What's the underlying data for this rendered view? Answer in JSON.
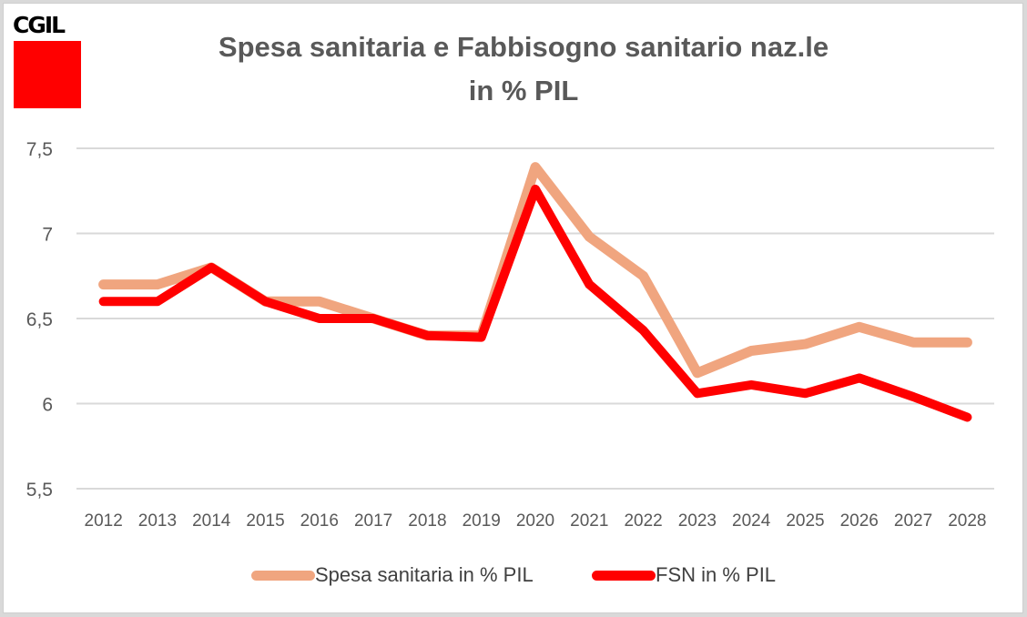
{
  "logo": {
    "text": "CGIL",
    "color": "#ff0000"
  },
  "chart_data": {
    "type": "line",
    "title": "Spesa sanitaria e Fabbisogno sanitario naz.le",
    "subtitle": "in % PIL",
    "xlabel": "",
    "ylabel": "",
    "ylim": [
      5.5,
      7.5
    ],
    "yticks": [
      7.5,
      7,
      6.5,
      6,
      5.5
    ],
    "ytick_labels": [
      "7,5",
      "7",
      "6,5",
      "6",
      "5,5"
    ],
    "grid": true,
    "legend_position": "bottom",
    "categories": [
      "2012",
      "2013",
      "2014",
      "2015",
      "2016",
      "2017",
      "2018",
      "2019",
      "2020",
      "2021",
      "2022",
      "2023",
      "2024",
      "2025",
      "2026",
      "2027",
      "2028"
    ],
    "series": [
      {
        "name": "Spesa sanitaria in % PIL",
        "color": "#f0a57f",
        "values": [
          6.7,
          6.7,
          6.8,
          6.6,
          6.6,
          6.5,
          6.4,
          6.4,
          7.39,
          6.98,
          6.75,
          6.18,
          6.31,
          6.35,
          6.45,
          6.36,
          6.36
        ]
      },
      {
        "name": "FSN in % PIL",
        "color": "#ff0000",
        "values": [
          6.6,
          6.6,
          6.8,
          6.6,
          6.5,
          6.5,
          6.4,
          6.39,
          7.26,
          6.7,
          6.43,
          6.06,
          6.11,
          6.06,
          6.15,
          6.04,
          5.92
        ]
      }
    ]
  }
}
